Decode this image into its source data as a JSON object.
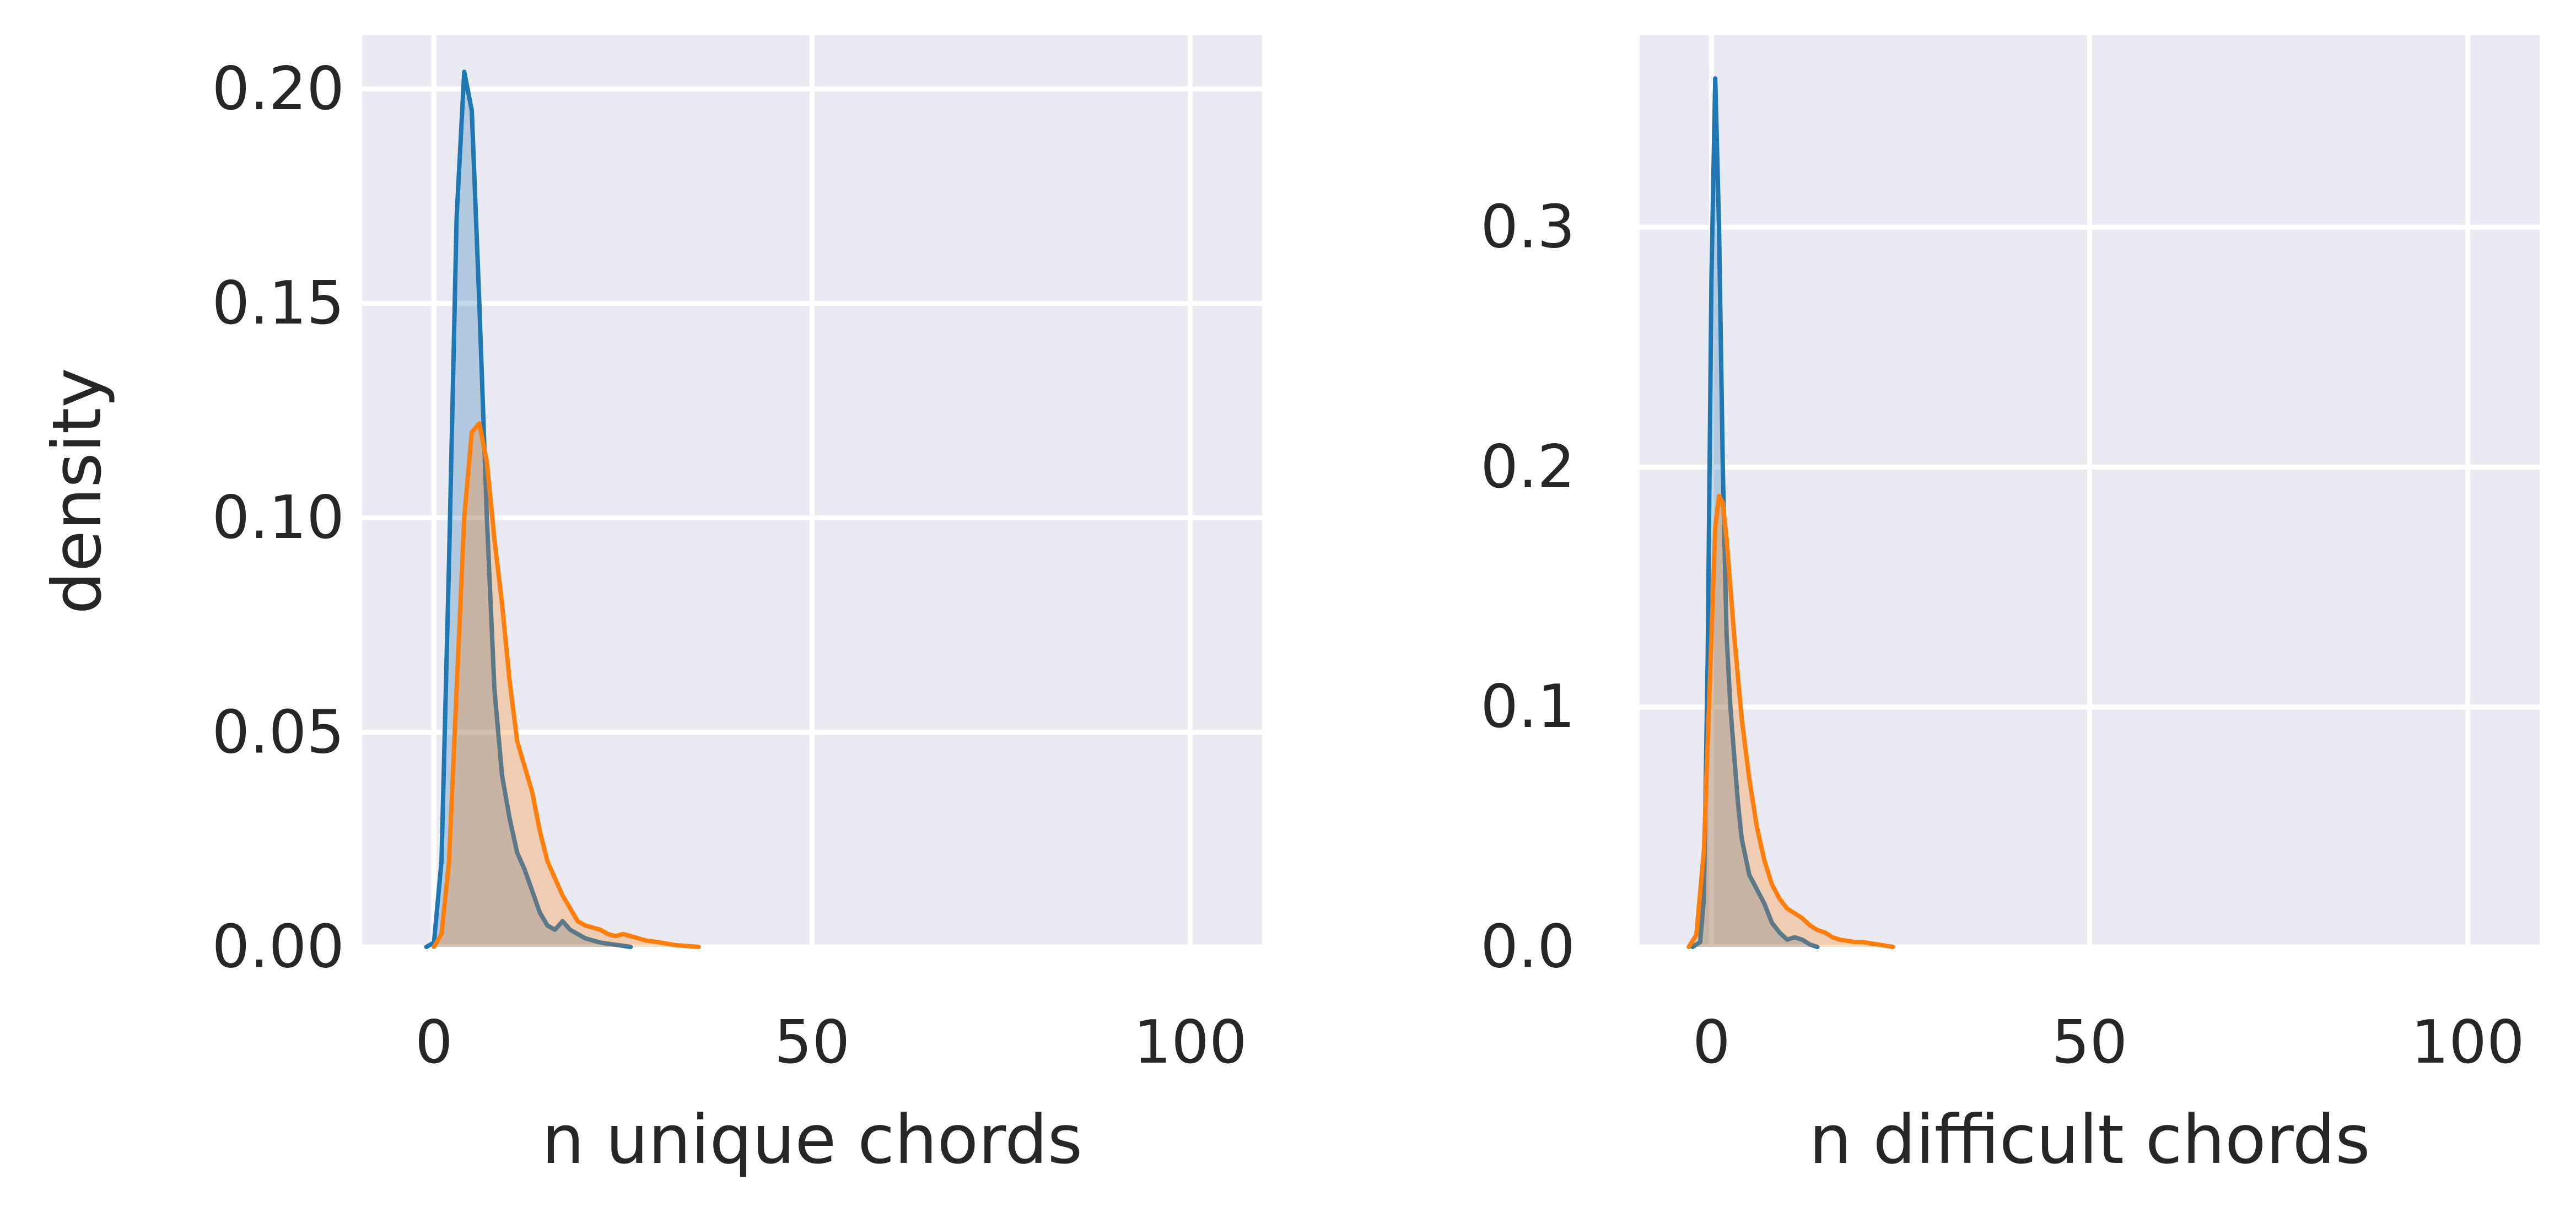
{
  "chart_data": [
    {
      "type": "area",
      "xlabel": "n unique chords",
      "ylabel": "density",
      "xlim": [
        -9.5,
        109.5
      ],
      "ylim": [
        0,
        0.2125
      ],
      "xticks": [
        0,
        50,
        100
      ],
      "xtick_labels": [
        "0",
        "50",
        "100"
      ],
      "yticks": [
        0,
        0.05,
        0.1,
        0.15,
        0.2
      ],
      "ytick_labels": [
        "0.00",
        "0.05",
        "0.10",
        "0.15",
        "0.20"
      ],
      "grid": true,
      "series": [
        {
          "color": "#1f77b4",
          "x": [
            -1,
            0,
            1,
            2,
            3,
            4,
            5,
            6,
            7,
            8,
            9,
            10,
            11,
            12,
            13,
            14,
            15,
            16,
            17,
            18,
            19,
            20,
            21,
            22,
            24,
            26
          ],
          "y": [
            0,
            0.001,
            0.02,
            0.09,
            0.17,
            0.204,
            0.195,
            0.15,
            0.1,
            0.06,
            0.04,
            0.03,
            0.022,
            0.018,
            0.013,
            0.008,
            0.005,
            0.004,
            0.006,
            0.004,
            0.003,
            0.002,
            0.0015,
            0.001,
            0.0005,
            0
          ]
        },
        {
          "color": "#ff7f0e",
          "x": [
            0,
            1,
            2,
            3,
            4,
            5,
            6,
            7,
            8,
            9,
            10,
            11,
            12,
            13,
            14,
            15,
            16,
            17,
            18,
            19,
            20,
            21,
            22,
            23,
            24,
            25,
            26,
            27,
            28,
            30,
            32,
            35
          ],
          "y": [
            0,
            0.003,
            0.02,
            0.06,
            0.1,
            0.12,
            0.122,
            0.113,
            0.095,
            0.08,
            0.062,
            0.048,
            0.042,
            0.036,
            0.027,
            0.02,
            0.016,
            0.012,
            0.009,
            0.006,
            0.005,
            0.0045,
            0.004,
            0.003,
            0.0025,
            0.003,
            0.0025,
            0.002,
            0.0015,
            0.001,
            0.0004,
            0
          ]
        }
      ]
    },
    {
      "type": "area",
      "xlabel": "n difficult chords",
      "ylabel": "",
      "xlim": [
        -9.5,
        109.5
      ],
      "ylim": [
        0,
        0.38
      ],
      "xticks": [
        0,
        50,
        100
      ],
      "xtick_labels": [
        "0",
        "50",
        "100"
      ],
      "yticks": [
        0,
        0.1,
        0.2,
        0.3
      ],
      "ytick_labels": [
        "0.0",
        "0.1",
        "0.2",
        "0.3"
      ],
      "grid": true,
      "series": [
        {
          "color": "#1f77b4",
          "x": [
            -2.5,
            -1.5,
            -1,
            -0.5,
            0,
            0.5,
            1,
            1.5,
            2,
            2.5,
            3,
            3.5,
            4,
            5,
            6,
            7,
            8,
            9,
            10,
            11,
            12,
            13,
            14
          ],
          "y": [
            0,
            0.002,
            0.02,
            0.12,
            0.28,
            0.362,
            0.3,
            0.2,
            0.13,
            0.1,
            0.08,
            0.06,
            0.045,
            0.03,
            0.024,
            0.018,
            0.01,
            0.006,
            0.003,
            0.004,
            0.003,
            0.001,
            0
          ]
        },
        {
          "color": "#ff7f0e",
          "x": [
            -3,
            -2,
            -1,
            0,
            0.5,
            1,
            1.5,
            2,
            3,
            4,
            5,
            6,
            7,
            8,
            9,
            10,
            11,
            12,
            13,
            14,
            15,
            16,
            17,
            18,
            19,
            20,
            21,
            22,
            23,
            24
          ],
          "y": [
            0,
            0.005,
            0.04,
            0.13,
            0.175,
            0.188,
            0.185,
            0.17,
            0.13,
            0.095,
            0.07,
            0.05,
            0.036,
            0.026,
            0.02,
            0.016,
            0.014,
            0.012,
            0.009,
            0.007,
            0.006,
            0.004,
            0.003,
            0.0025,
            0.002,
            0.002,
            0.0015,
            0.001,
            0.0005,
            0
          ]
        }
      ]
    }
  ]
}
